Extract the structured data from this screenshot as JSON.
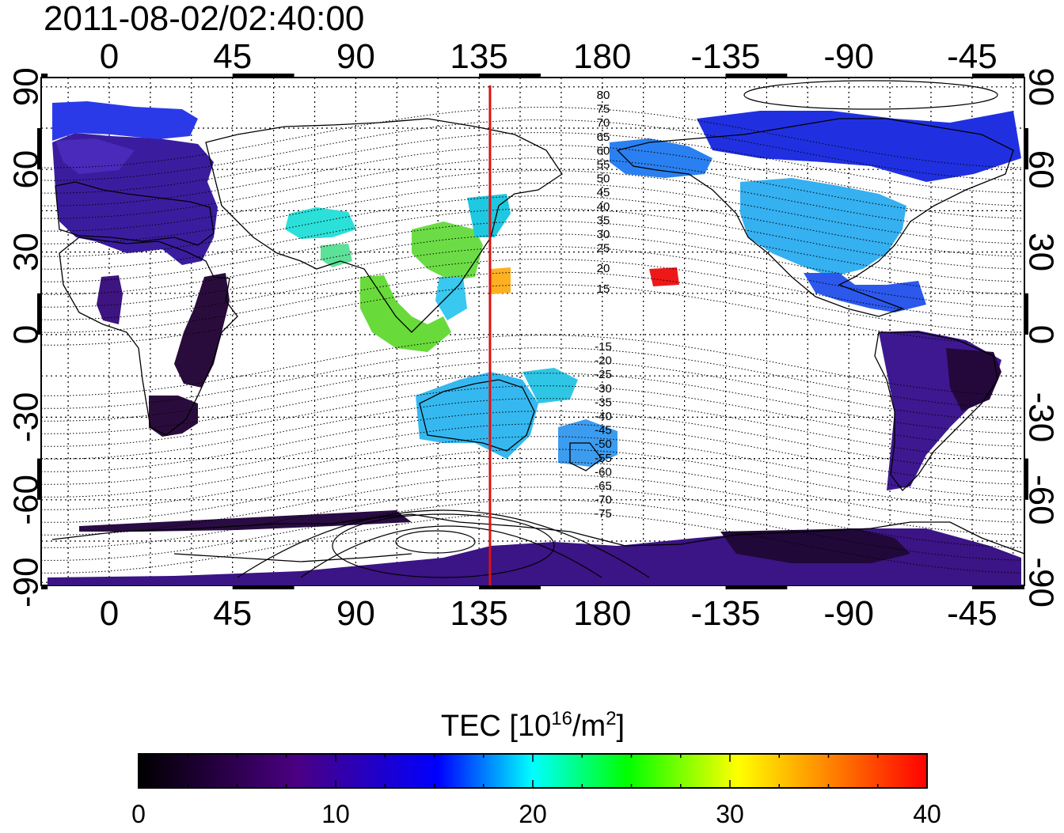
{
  "title": "2011-08-02/02:40:00",
  "map": {
    "lon_ticks": [
      "0",
      "45",
      "90",
      "135",
      "180",
      "-135",
      "-90",
      "-45"
    ],
    "lat_ticks": [
      "90",
      "60",
      "30",
      "0",
      "-30",
      "-60",
      "-90"
    ],
    "meridian_line_lon": 139,
    "meridian_color": "#dd1111",
    "north_labels": [
      "80",
      "75",
      "70",
      "65",
      "60",
      "55",
      "50",
      "45",
      "40",
      "35",
      "30",
      "25",
      "20",
      "15"
    ],
    "south_labels": [
      "-15",
      "-20",
      "-25",
      "-30",
      "-35",
      "-40",
      "-45",
      "-50",
      "-55",
      "-60",
      "-65",
      "-70",
      "-75"
    ]
  },
  "colorbar": {
    "title_main": "TEC  [10",
    "title_sup1": "16",
    "title_mid": "/m",
    "title_sup2": "2",
    "title_end": "]",
    "tick_labels": [
      "0",
      "10",
      "20",
      "30",
      "40"
    ],
    "colors": [
      "#000000",
      "#4b0082",
      "#0000ff",
      "#00ffff",
      "#00ff00",
      "#ffff00",
      "#ff0000"
    ]
  }
}
